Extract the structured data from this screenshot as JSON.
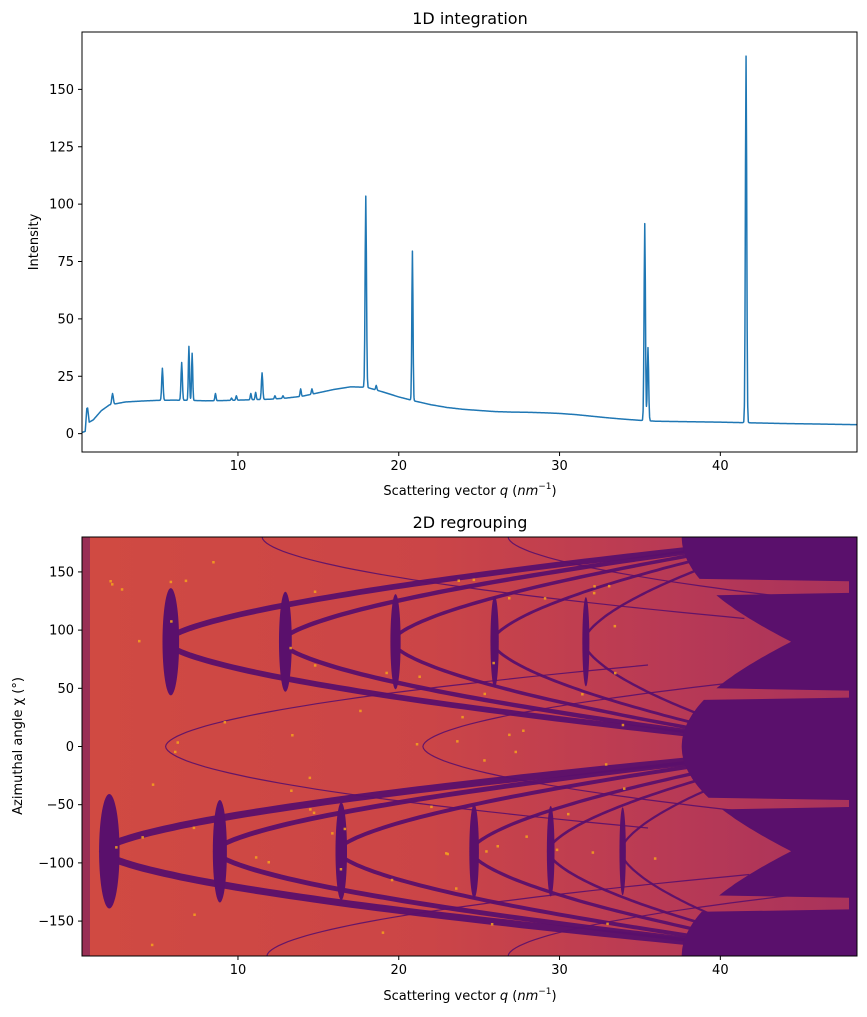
{
  "chart_data": [
    {
      "type": "line",
      "title": "1D integration",
      "xlabel": "Scattering vector",
      "xlabel_q": "q",
      "xlabel_unit_pre": "(",
      "xlabel_unit_nm": "nm",
      "xlabel_unit_exp": "−1",
      "xlabel_unit_post": ")",
      "ylabel": "Intensity",
      "xlim": [
        0.3,
        48.5
      ],
      "ylim": [
        -8,
        175
      ],
      "xticks": [
        10,
        20,
        30,
        40
      ],
      "xtick_labels": [
        "10",
        "20",
        "30",
        "40"
      ],
      "yticks": [
        0,
        25,
        50,
        75,
        100,
        125,
        150
      ],
      "ytick_labels": [
        "0",
        "25",
        "50",
        "75",
        "100",
        "125",
        "150"
      ],
      "line_color": "#1f77b4",
      "baseline": [
        [
          0.3,
          0.5
        ],
        [
          0.5,
          1
        ],
        [
          0.62,
          13
        ],
        [
          0.75,
          5
        ],
        [
          1.0,
          6
        ],
        [
          1.5,
          10
        ],
        [
          2.0,
          12.5
        ],
        [
          3,
          13.8
        ],
        [
          4,
          14.2
        ],
        [
          5,
          14.5
        ],
        [
          6,
          14.6
        ],
        [
          7,
          14.5
        ],
        [
          8,
          14.3
        ],
        [
          9,
          14.4
        ],
        [
          10,
          14.6
        ],
        [
          11,
          14.8
        ],
        [
          12,
          15
        ],
        [
          13,
          15.5
        ],
        [
          14,
          16.3
        ],
        [
          15,
          17.8
        ],
        [
          16,
          19.3
        ],
        [
          17,
          20.4
        ],
        [
          18,
          20.2
        ],
        [
          19,
          18.2
        ],
        [
          20,
          16
        ],
        [
          21,
          14.2
        ],
        [
          22,
          12.6
        ],
        [
          23,
          11.4
        ],
        [
          24,
          10.6
        ],
        [
          25,
          10.1
        ],
        [
          26,
          9.6
        ],
        [
          27,
          9.4
        ],
        [
          28,
          9.3
        ],
        [
          29,
          9.1
        ],
        [
          30,
          8.8
        ],
        [
          31,
          8.3
        ],
        [
          32,
          7.6
        ],
        [
          33,
          6.9
        ],
        [
          34,
          6.3
        ],
        [
          35,
          5.8
        ],
        [
          36,
          5.4
        ],
        [
          38,
          5.2
        ],
        [
          40,
          5.0
        ],
        [
          42,
          4.7
        ],
        [
          44,
          4.4
        ],
        [
          46,
          4.2
        ],
        [
          48.5,
          3.9
        ]
      ],
      "peaks": [
        {
          "x": 2.2,
          "height": 17.5,
          "width": 0.08
        },
        {
          "x": 5.3,
          "height": 28.5,
          "width": 0.07
        },
        {
          "x": 6.5,
          "height": 31,
          "width": 0.07
        },
        {
          "x": 6.95,
          "height": 38,
          "width": 0.06
        },
        {
          "x": 7.15,
          "height": 35,
          "width": 0.06
        },
        {
          "x": 8.6,
          "height": 17.5,
          "width": 0.06
        },
        {
          "x": 9.6,
          "height": 15.5,
          "width": 0.06
        },
        {
          "x": 9.9,
          "height": 16.5,
          "width": 0.06
        },
        {
          "x": 10.8,
          "height": 17.5,
          "width": 0.06
        },
        {
          "x": 11.1,
          "height": 18,
          "width": 0.06
        },
        {
          "x": 11.5,
          "height": 26.5,
          "width": 0.07
        },
        {
          "x": 12.3,
          "height": 16.5,
          "width": 0.06
        },
        {
          "x": 12.8,
          "height": 16.5,
          "width": 0.06
        },
        {
          "x": 13.9,
          "height": 19.5,
          "width": 0.06
        },
        {
          "x": 14.6,
          "height": 19.5,
          "width": 0.06
        },
        {
          "x": 17.95,
          "height": 103.5,
          "width": 0.07
        },
        {
          "x": 18.6,
          "height": 21,
          "width": 0.06
        },
        {
          "x": 20.85,
          "height": 79.5,
          "width": 0.06
        },
        {
          "x": 35.3,
          "height": 91.5,
          "width": 0.07
        },
        {
          "x": 35.5,
          "height": 37.5,
          "width": 0.07
        },
        {
          "x": 41.6,
          "height": 164.5,
          "width": 0.07
        }
      ]
    },
    {
      "type": "heatmap",
      "title": "2D regrouping",
      "xlabel": "Scattering vector",
      "xlabel_q": "q",
      "xlabel_unit_pre": "(",
      "xlabel_unit_nm": "nm",
      "xlabel_unit_exp": "−1",
      "xlabel_unit_post": ")",
      "ylabel": "Azimuthal angle χ (°)",
      "xlim": [
        0.3,
        48.5
      ],
      "ylim": [
        -180,
        180
      ],
      "xticks": [
        10,
        20,
        30,
        40
      ],
      "xtick_labels": [
        "10",
        "20",
        "30",
        "40"
      ],
      "yticks": [
        150,
        100,
        50,
        0,
        -50,
        -100,
        -150
      ],
      "ytick_labels": [
        "150",
        "100",
        "50",
        "0",
        "−50",
        "−100",
        "−150"
      ],
      "colormap": "inferno",
      "colors": {
        "background": "#cb4746",
        "masked": "#5a106c",
        "hot_spot": "#f4a21d",
        "edge_dark": "#b63a4f"
      },
      "lower_arcs": [
        {
          "q_min": 1.6,
          "q_max": 46,
          "chi_center": -90,
          "weight": 3.2
        },
        {
          "q_min": 8.6,
          "q_max": 46,
          "chi_center": -90,
          "weight": 2.2
        },
        {
          "q_min": 16.2,
          "q_max": 46,
          "chi_center": -90,
          "weight": 1.8
        },
        {
          "q_min": 24.5,
          "q_max": 46,
          "chi_center": -90,
          "weight": 1.5
        },
        {
          "q_min": 29.3,
          "q_max": 46,
          "chi_center": -90,
          "weight": 1.2
        },
        {
          "q_min": 33.8,
          "q_max": 46,
          "chi_center": -90,
          "weight": 1.0
        }
      ],
      "upper_arcs": [
        {
          "q_min": 5.5,
          "q_max": 44,
          "chi_center": 90,
          "weight": 2.6
        },
        {
          "q_min": 12.7,
          "q_max": 44,
          "chi_center": 90,
          "weight": 2.0
        },
        {
          "q_min": 19.6,
          "q_max": 44,
          "chi_center": 90,
          "weight": 1.6
        },
        {
          "q_min": 25.8,
          "q_max": 44,
          "chi_center": 90,
          "weight": 1.3
        },
        {
          "q_min": 31.5,
          "q_max": 44,
          "chi_center": 90,
          "weight": 1.1
        }
      ]
    }
  ]
}
